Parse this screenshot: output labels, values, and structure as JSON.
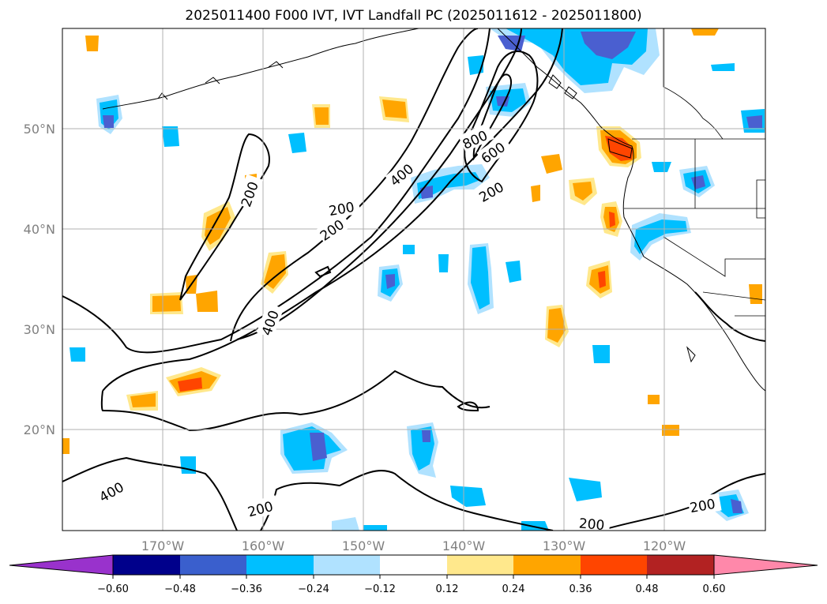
{
  "title": "2025011400 F000 IVT, IVT Landfall PC (2025011612 - 2025011800)",
  "lon_labels": [
    "170°W",
    "160°W",
    "150°W",
    "140°W",
    "130°W",
    "120°W"
  ],
  "lat_labels": [
    "50°N",
    "40°N",
    "30°N",
    "20°N"
  ],
  "contour_labels": [
    "800",
    "600",
    "400",
    "200",
    "200",
    "200",
    "400",
    "200",
    "200",
    "400",
    "200",
    "200"
  ],
  "colorbar": {
    "tick_labels": [
      "−0.60",
      "−0.48",
      "−0.36",
      "−0.24",
      "−0.12",
      "0.12",
      "0.24",
      "0.36",
      "0.48",
      "0.60"
    ],
    "colors": [
      "#9932cc",
      "#00008b",
      "#3a5fcd",
      "#00bfff",
      "#b0e2ff",
      "#ffffff",
      "#ffe88c",
      "#ffa500",
      "#ff4500",
      "#b22222",
      "#ff88aa"
    ]
  },
  "shading_colors": {
    "light_blue": "#b0e2ff",
    "blue": "#00bfff",
    "dark_blue": "#4a5fd0",
    "light_yellow": "#ffe88c",
    "orange": "#ffa500",
    "red_orange": "#ff4500"
  }
}
